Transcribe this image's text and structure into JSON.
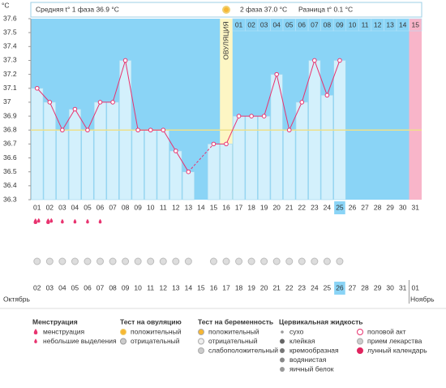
{
  "header": {
    "unit": "°C",
    "phase1": "Средняя t° 1 фаза 36.9 °C",
    "phase2": "2 фаза 37.0 °C",
    "difference": "Разница t° 0.1 °C"
  },
  "chart_data": {
    "type": "line",
    "categories": [
      "01",
      "02",
      "03",
      "04",
      "05",
      "06",
      "07",
      "08",
      "09",
      "10",
      "11",
      "12",
      "13",
      "14",
      "15",
      "16",
      "17",
      "18",
      "19",
      "20",
      "21",
      "22",
      "23",
      "24",
      "25",
      "26",
      "27",
      "28",
      "29",
      "30",
      "31"
    ],
    "values": [
      37.1,
      37.0,
      36.8,
      36.95,
      36.8,
      37.0,
      37.0,
      37.3,
      36.8,
      36.8,
      36.8,
      36.65,
      36.5,
      null,
      36.7,
      36.7,
      36.9,
      36.9,
      36.9,
      37.2,
      36.8,
      37.0,
      37.3,
      37.05,
      37.3,
      null,
      null,
      null,
      null,
      null,
      null
    ],
    "ylim": [
      36.3,
      37.6
    ],
    "yticks": [
      36.3,
      36.4,
      36.5,
      36.6,
      36.7,
      36.8,
      36.9,
      37,
      37.1,
      37.2,
      37.3,
      37.4,
      37.5,
      37.6
    ],
    "coverline": 36.8,
    "line_color": "#e8336f",
    "bar_color": "#d3f0fc",
    "background_color": "#8ad4f6",
    "ovulation": {
      "index": 15,
      "label": "ОВУЛЯЦИЯ",
      "color": "#fdf6c4"
    },
    "phase2_start": 16,
    "phase2_days": [
      "01",
      "02",
      "03",
      "04",
      "05",
      "06",
      "07",
      "08",
      "09",
      "10",
      "11",
      "12",
      "13",
      "14",
      "15"
    ],
    "expected_period_index": 30,
    "expected_period_color": "#f8b5c9",
    "today_index": 24
  },
  "calendar": {
    "dates": [
      "02",
      "03",
      "04",
      "05",
      "06",
      "07",
      "08",
      "09",
      "10",
      "11",
      "12",
      "13",
      "14",
      "15",
      "16",
      "17",
      "18",
      "19",
      "20",
      "21",
      "22",
      "23",
      "24",
      "25",
      "26",
      "27",
      "28",
      "29",
      "30",
      "31",
      "01"
    ],
    "weekend_indices": [
      0,
      6,
      7,
      13,
      14,
      20,
      21,
      27,
      28
    ],
    "weekend_color": "#e0245e",
    "today_index": 24,
    "month_start": "Октябрь",
    "month_end": "Ноябрь"
  },
  "symptoms": {
    "menstruation_days": [
      0,
      1
    ],
    "spotting_days": [
      2,
      3,
      4,
      5
    ],
    "pregnancy_test_negative_days": [
      0,
      1,
      2,
      3,
      4,
      5,
      6,
      7,
      8,
      9,
      10,
      11,
      12,
      14,
      15,
      16,
      17,
      18,
      19,
      20,
      21,
      22,
      23,
      24
    ],
    "moon_day": 14
  },
  "legend": [
    {
      "title": "Менструация",
      "items": [
        "менструация",
        "небольшие выделения"
      ]
    },
    {
      "title": "Тест на овуляцию",
      "items": [
        "положительный",
        "отрицательный"
      ]
    },
    {
      "title": "Тест на беременность",
      "items": [
        "положительный",
        "отрицательный",
        "слабоположительный"
      ]
    },
    {
      "title": "Цервикальная жидкость",
      "items": [
        "сухо",
        "клейкая",
        "кремообразная",
        "водянистая",
        "яичный белок"
      ]
    },
    {
      "items": [
        "половой акт",
        "прием лекарства",
        "лунный календарь"
      ]
    }
  ]
}
